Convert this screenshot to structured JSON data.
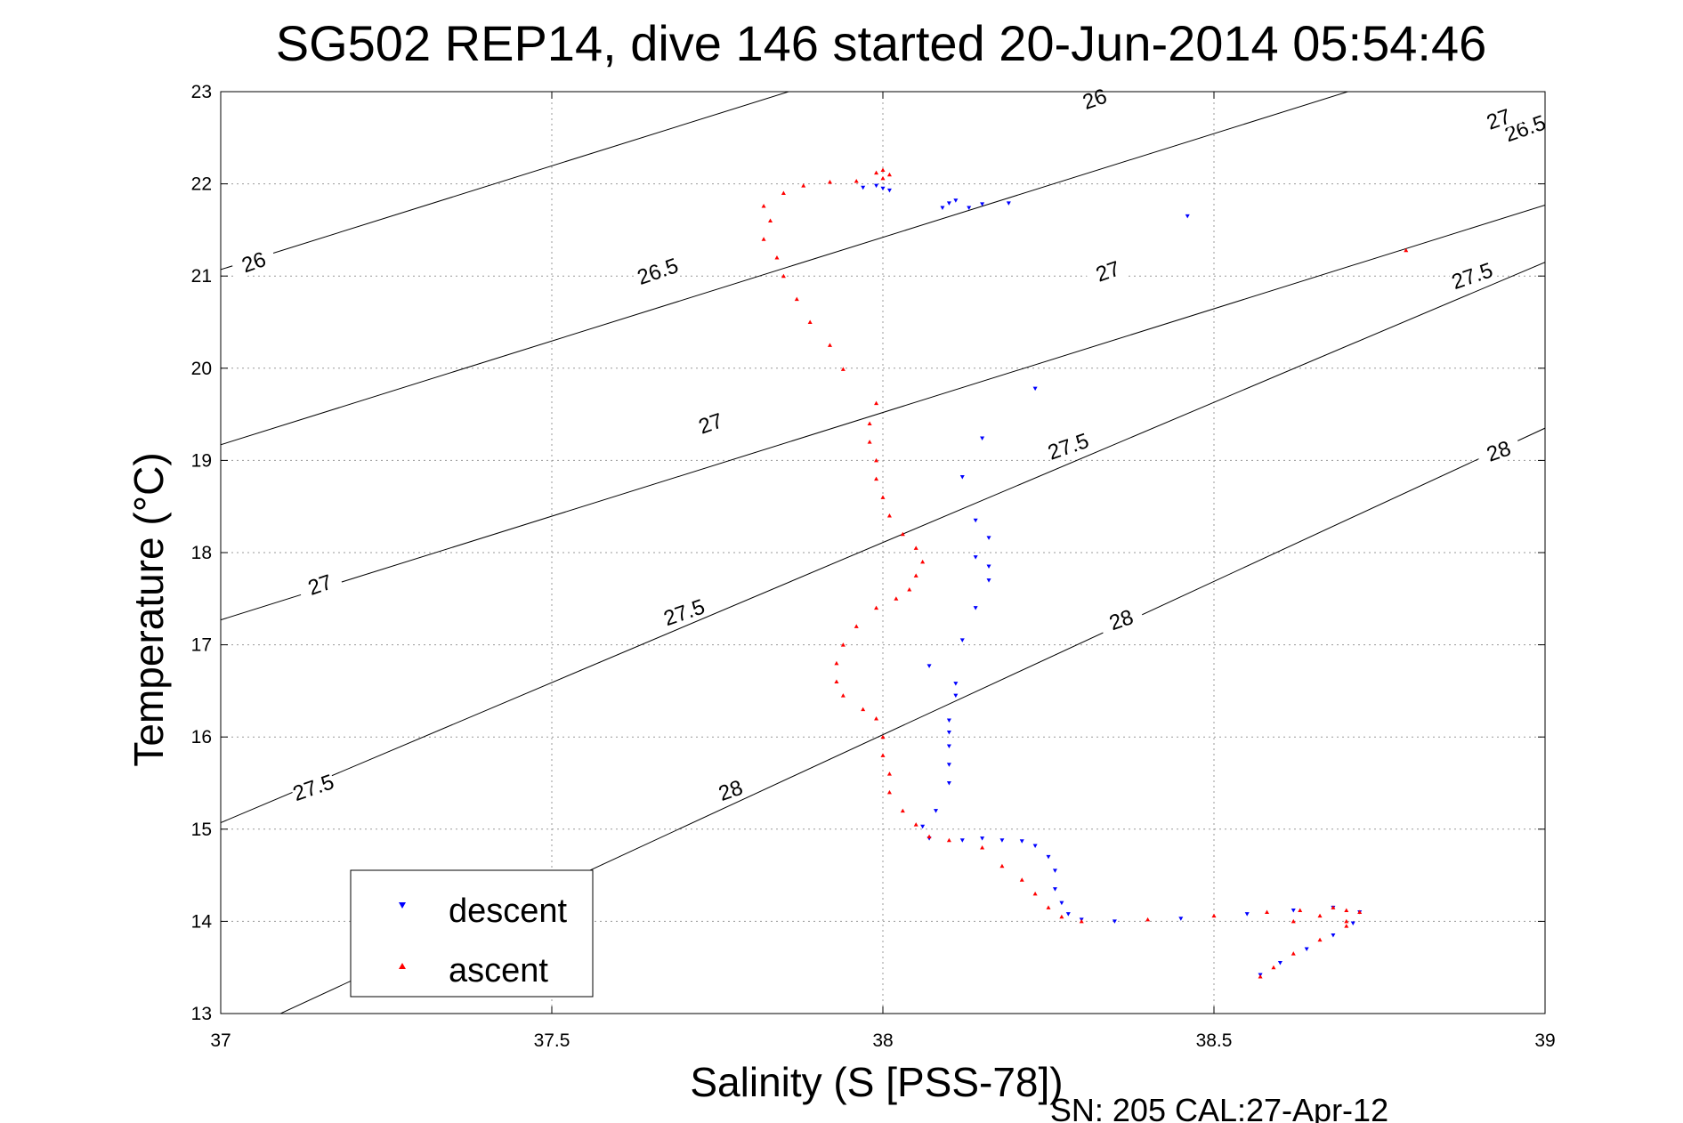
{
  "chart_data": {
    "type": "scatter",
    "title": "SG502 REP14, dive 146 started 20-Jun-2014 05:54:46",
    "xlabel": "Salinity (S [PSS-78])",
    "ylabel": "Temperature (°C)",
    "xlim": [
      37,
      39
    ],
    "ylim": [
      13,
      23
    ],
    "xticks": [
      "37",
      "37.5",
      "38",
      "38.5",
      "39"
    ],
    "yticks": [
      "13",
      "14",
      "15",
      "16",
      "17",
      "18",
      "19",
      "20",
      "21",
      "22",
      "23"
    ],
    "grid": true,
    "legend_position": "bottom-left",
    "footer": "SN: 205  CAL:27-Apr-12",
    "colors": {
      "descent": "#0000ff",
      "ascent": "#ff0000",
      "isopycnal": "#000000"
    },
    "isopycnals": [
      {
        "label": "26",
        "values": [
          26
        ]
      },
      {
        "label": "26.5",
        "values": [
          26.5
        ]
      },
      {
        "label": "27",
        "values": [
          27
        ]
      },
      {
        "label": "27.5",
        "values": [
          27.5
        ]
      },
      {
        "label": "28",
        "values": [
          28
        ]
      }
    ],
    "isopycnal_lines": [
      {
        "sigma": 26.0,
        "x": [
          37,
          39
        ],
        "y": [
          21.07,
          25.57
        ]
      },
      {
        "sigma": 26.5,
        "x": [
          37,
          39
        ],
        "y": [
          19.17,
          23.67
        ]
      },
      {
        "sigma": 27.0,
        "x": [
          37,
          39
        ],
        "y": [
          17.27,
          21.77
        ]
      },
      {
        "sigma": 27.5,
        "x": [
          37,
          39
        ],
        "y": [
          15.07,
          21.15
        ]
      },
      {
        "sigma": 28.0,
        "x": [
          37,
          39
        ],
        "y": [
          12.7,
          19.35
        ]
      }
    ],
    "isopycnal_tags": [
      {
        "text": "26",
        "x": 38.32,
        "y": 22.92
      },
      {
        "text": "26",
        "x": 37.05,
        "y": 21.15
      },
      {
        "text": "26.5",
        "x": 38.97,
        "y": 22.6
      },
      {
        "text": "26.5",
        "x": 37.66,
        "y": 21.05
      },
      {
        "text": "27",
        "x": 38.93,
        "y": 22.7
      },
      {
        "text": "27",
        "x": 38.34,
        "y": 21.05
      },
      {
        "text": "27",
        "x": 37.74,
        "y": 19.4
      },
      {
        "text": "27",
        "x": 37.15,
        "y": 17.65
      },
      {
        "text": "27.5",
        "x": 38.89,
        "y": 21.0
      },
      {
        "text": "27.5",
        "x": 38.28,
        "y": 19.15
      },
      {
        "text": "27.5",
        "x": 37.7,
        "y": 17.35
      },
      {
        "text": "27.5",
        "x": 37.14,
        "y": 15.45
      },
      {
        "text": "28",
        "x": 38.93,
        "y": 19.1
      },
      {
        "text": "28",
        "x": 38.36,
        "y": 17.27
      },
      {
        "text": "28",
        "x": 37.77,
        "y": 15.42
      }
    ],
    "series": [
      {
        "name": "descent",
        "marker": "triangle-down",
        "points": [
          [
            37.97,
            21.96
          ],
          [
            37.99,
            21.98
          ],
          [
            38.0,
            21.95
          ],
          [
            38.01,
            21.93
          ],
          [
            38.09,
            21.74
          ],
          [
            38.1,
            21.79
          ],
          [
            38.11,
            21.82
          ],
          [
            38.13,
            21.74
          ],
          [
            38.15,
            21.78
          ],
          [
            38.19,
            21.79
          ],
          [
            38.46,
            21.65
          ],
          [
            38.23,
            19.78
          ],
          [
            38.15,
            19.24
          ],
          [
            38.12,
            18.82
          ],
          [
            38.14,
            18.35
          ],
          [
            38.16,
            18.16
          ],
          [
            38.14,
            17.95
          ],
          [
            38.16,
            17.85
          ],
          [
            38.16,
            17.7
          ],
          [
            38.14,
            17.4
          ],
          [
            38.12,
            17.05
          ],
          [
            38.07,
            16.77
          ],
          [
            38.11,
            16.58
          ],
          [
            38.11,
            16.45
          ],
          [
            38.1,
            16.18
          ],
          [
            38.1,
            16.05
          ],
          [
            38.1,
            15.9
          ],
          [
            38.1,
            15.7
          ],
          [
            38.1,
            15.5
          ],
          [
            38.08,
            15.2
          ],
          [
            38.06,
            15.03
          ],
          [
            38.07,
            14.9
          ],
          [
            38.12,
            14.88
          ],
          [
            38.15,
            14.9
          ],
          [
            38.18,
            14.88
          ],
          [
            38.21,
            14.87
          ],
          [
            38.23,
            14.82
          ],
          [
            38.25,
            14.7
          ],
          [
            38.26,
            14.55
          ],
          [
            38.26,
            14.35
          ],
          [
            38.27,
            14.2
          ],
          [
            38.28,
            14.08
          ],
          [
            38.3,
            14.02
          ],
          [
            38.35,
            14.0
          ],
          [
            38.45,
            14.03
          ],
          [
            38.55,
            14.08
          ],
          [
            38.62,
            14.12
          ],
          [
            38.68,
            14.15
          ],
          [
            38.72,
            14.1
          ],
          [
            38.71,
            13.98
          ],
          [
            38.68,
            13.85
          ],
          [
            38.64,
            13.7
          ],
          [
            38.6,
            13.55
          ],
          [
            38.57,
            13.42
          ]
        ]
      },
      {
        "name": "ascent",
        "marker": "triangle-up",
        "points": [
          [
            38.0,
            22.15
          ],
          [
            37.99,
            22.12
          ],
          [
            38.01,
            22.1
          ],
          [
            38.0,
            22.06
          ],
          [
            37.96,
            22.03
          ],
          [
            37.92,
            22.02
          ],
          [
            37.88,
            21.98
          ],
          [
            37.85,
            21.9
          ],
          [
            37.82,
            21.76
          ],
          [
            37.83,
            21.6
          ],
          [
            37.82,
            21.4
          ],
          [
            37.84,
            21.2
          ],
          [
            37.85,
            21.0
          ],
          [
            37.87,
            20.75
          ],
          [
            37.89,
            20.5
          ],
          [
            37.92,
            20.25
          ],
          [
            37.94,
            19.99
          ],
          [
            37.99,
            19.62
          ],
          [
            37.98,
            19.4
          ],
          [
            37.98,
            19.2
          ],
          [
            37.99,
            19.0
          ],
          [
            37.99,
            18.8
          ],
          [
            38.0,
            18.6
          ],
          [
            38.01,
            18.4
          ],
          [
            38.03,
            18.2
          ],
          [
            38.05,
            18.05
          ],
          [
            38.06,
            17.9
          ],
          [
            38.05,
            17.75
          ],
          [
            38.04,
            17.6
          ],
          [
            38.02,
            17.5
          ],
          [
            37.99,
            17.4
          ],
          [
            37.96,
            17.2
          ],
          [
            37.94,
            17.0
          ],
          [
            37.93,
            16.8
          ],
          [
            37.93,
            16.6
          ],
          [
            37.94,
            16.45
          ],
          [
            37.97,
            16.3
          ],
          [
            37.99,
            16.2
          ],
          [
            38.0,
            16.0
          ],
          [
            38.0,
            15.8
          ],
          [
            38.01,
            15.6
          ],
          [
            38.01,
            15.4
          ],
          [
            38.03,
            15.2
          ],
          [
            38.05,
            15.05
          ],
          [
            38.07,
            14.92
          ],
          [
            38.1,
            14.88
          ],
          [
            38.15,
            14.8
          ],
          [
            38.18,
            14.6
          ],
          [
            38.21,
            14.45
          ],
          [
            38.23,
            14.3
          ],
          [
            38.25,
            14.15
          ],
          [
            38.27,
            14.05
          ],
          [
            38.3,
            14.0
          ],
          [
            38.4,
            14.02
          ],
          [
            38.5,
            14.06
          ],
          [
            38.58,
            14.1
          ],
          [
            38.63,
            14.12
          ],
          [
            38.68,
            14.15
          ],
          [
            38.7,
            14.12
          ],
          [
            38.66,
            14.06
          ],
          [
            38.62,
            14.0
          ],
          [
            38.7,
            14.0
          ],
          [
            38.72,
            14.1
          ],
          [
            38.7,
            13.95
          ],
          [
            38.66,
            13.8
          ],
          [
            38.62,
            13.65
          ],
          [
            38.59,
            13.5
          ],
          [
            38.57,
            13.4
          ],
          [
            38.79,
            21.28
          ]
        ]
      }
    ]
  }
}
